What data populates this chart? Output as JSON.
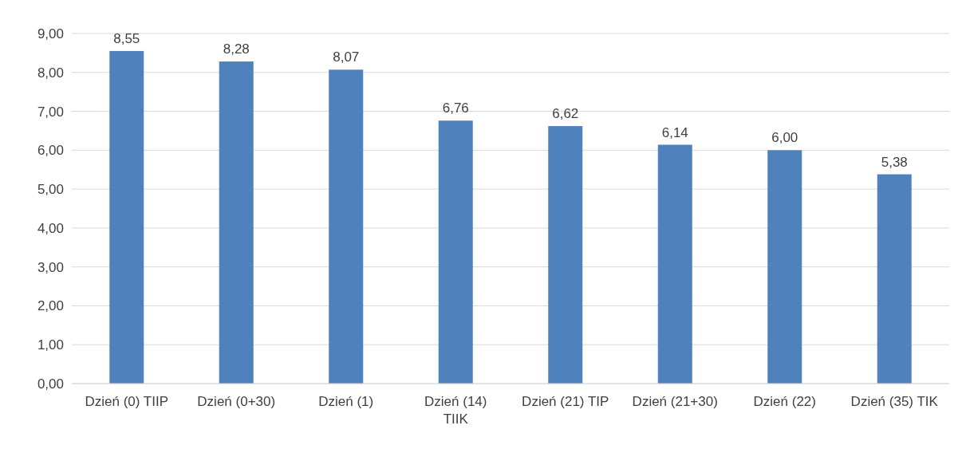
{
  "chart_data": {
    "type": "bar",
    "categories": [
      "Dzień (0) TIIP",
      "Dzień (0+30)",
      "Dzień (1)",
      "Dzień (14) TIIK",
      "Dzień (21) TIP",
      "Dzień (21+30)",
      "Dzień (22)",
      "Dzień (35) TIK"
    ],
    "values": [
      8.55,
      8.28,
      8.07,
      6.76,
      6.62,
      6.14,
      6.0,
      5.38
    ],
    "value_labels": [
      "8,55",
      "8,28",
      "8,07",
      "6,76",
      "6,62",
      "6,14",
      "6,00",
      "5,38"
    ],
    "color": "#4f81bd",
    "ylim": [
      0,
      9
    ],
    "yticks": [
      {
        "value": 0,
        "label": "0,00"
      },
      {
        "value": 1,
        "label": "1,00"
      },
      {
        "value": 2,
        "label": "2,00"
      },
      {
        "value": 3,
        "label": "3,00"
      },
      {
        "value": 4,
        "label": "4,00"
      },
      {
        "value": 5,
        "label": "5,00"
      },
      {
        "value": 6,
        "label": "6,00"
      },
      {
        "value": 7,
        "label": "7,00"
      },
      {
        "value": 8,
        "label": "8,00"
      },
      {
        "value": 9,
        "label": "9,00"
      }
    ],
    "grid": "y"
  }
}
